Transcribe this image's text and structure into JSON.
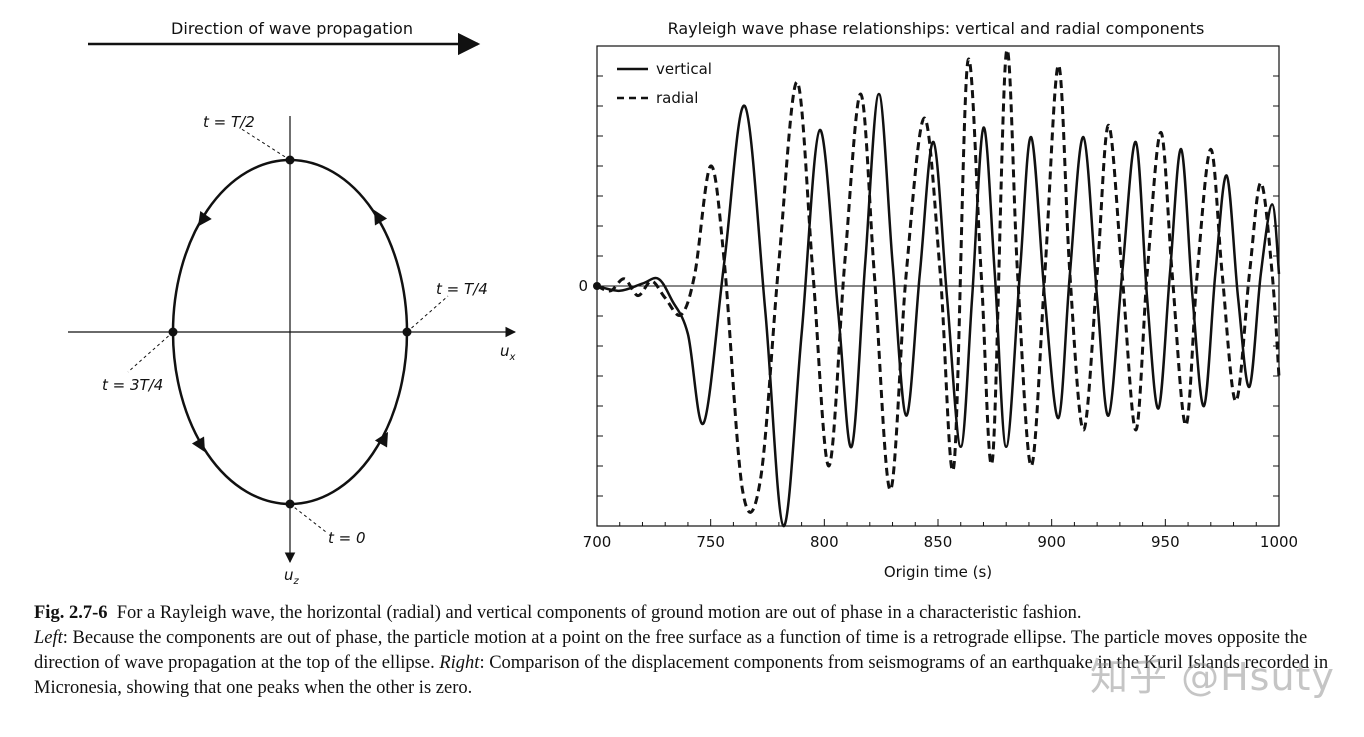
{
  "left_panel": {
    "direction_label": "Direction of wave propagation",
    "labels": {
      "t_half": "t = T/2",
      "t_quarter": "t = T/4",
      "t_three_quarter": "t = 3T/4",
      "t_zero": "t = 0"
    },
    "axis_ux": "u",
    "axis_ux_sub": "x",
    "axis_uz": "u",
    "axis_uz_sub": "z"
  },
  "chart_data": {
    "type": "line",
    "title": "Rayleigh wave phase relationships: vertical and radial components",
    "xlabel": "Origin time (s)",
    "ylabel": "",
    "xlim": [
      700,
      1000
    ],
    "ylim": [
      -1.0,
      1.0
    ],
    "x_ticks": [
      "700",
      "750",
      "800",
      "850",
      "900",
      "950",
      "1000"
    ],
    "y_tick_label": "0",
    "legend_position": "top-left",
    "series": [
      {
        "name": "vertical",
        "style": "solid",
        "x": [
          700,
          710,
          720,
          727,
          733,
          740,
          747,
          756,
          765,
          774,
          782,
          790,
          798,
          806,
          812,
          818,
          824,
          830,
          836,
          842,
          848,
          854,
          860,
          865,
          870,
          875,
          880,
          886,
          891,
          897,
          903,
          908,
          914,
          920,
          925,
          931,
          937,
          942,
          947,
          952,
          957,
          962,
          967,
          972,
          977,
          982,
          987,
          992,
          997,
          1000
        ],
        "y": [
          0.0,
          -0.02,
          0.01,
          0.03,
          -0.06,
          -0.2,
          -0.57,
          0.1,
          0.75,
          -0.1,
          -1.0,
          -0.2,
          0.65,
          -0.1,
          -0.67,
          0.1,
          0.8,
          0.1,
          -0.54,
          0.05,
          0.6,
          -0.05,
          -0.67,
          -0.05,
          0.66,
          0.05,
          -0.67,
          0.05,
          0.62,
          -0.05,
          -0.55,
          0.05,
          0.62,
          -0.05,
          -0.54,
          0.05,
          0.6,
          -0.05,
          -0.51,
          0.05,
          0.57,
          -0.05,
          -0.5,
          0.05,
          0.46,
          -0.05,
          -0.42,
          0.05,
          0.34,
          0.05
        ]
      },
      {
        "name": "radial",
        "style": "dashed",
        "x": [
          700,
          706,
          712,
          718,
          724,
          730,
          737,
          743,
          750,
          756,
          764,
          772,
          780,
          788,
          795,
          802,
          809,
          816,
          822,
          829,
          836,
          844,
          851,
          857,
          863,
          869,
          874,
          880,
          885,
          891,
          897,
          903,
          908,
          914,
          920,
          925,
          931,
          937,
          942,
          948,
          953,
          959,
          964,
          970,
          975,
          981,
          987,
          992,
          997,
          1000
        ],
        "y": [
          0.0,
          -0.02,
          0.03,
          -0.04,
          0.02,
          -0.05,
          -0.12,
          0.05,
          0.5,
          0.1,
          -0.85,
          -0.8,
          0.1,
          0.85,
          0.05,
          -0.75,
          0.1,
          0.8,
          0.05,
          -0.85,
          0.05,
          0.7,
          0.05,
          -0.75,
          0.93,
          0.05,
          -0.72,
          0.97,
          0.05,
          -0.75,
          0.05,
          0.92,
          0.05,
          -0.6,
          0.05,
          0.67,
          0.05,
          -0.6,
          0.05,
          0.64,
          0.05,
          -0.58,
          0.05,
          0.57,
          0.05,
          -0.48,
          0.05,
          0.43,
          0.05,
          -0.38
        ]
      }
    ]
  },
  "caption": {
    "label": "Fig. 2.7-6",
    "line1": "For a Rayleigh wave, the horizontal (radial) and vertical components of ground motion are out of phase in a characteristic fashion.",
    "left_label": "Left",
    "left_text": ": Because the components are out of phase, the particle motion at a point on the free surface as a function of time is a retrograde ellipse. The particle moves opposite the direction of wave propagation at the top of the ellipse. ",
    "right_label": "Right",
    "right_text": ": Comparison of the displacement components from seismograms of an earthquake in the Kuril Islands recorded in Micronesia, showing that one peaks when the other is zero."
  },
  "watermark": "知乎 @Hsuty"
}
